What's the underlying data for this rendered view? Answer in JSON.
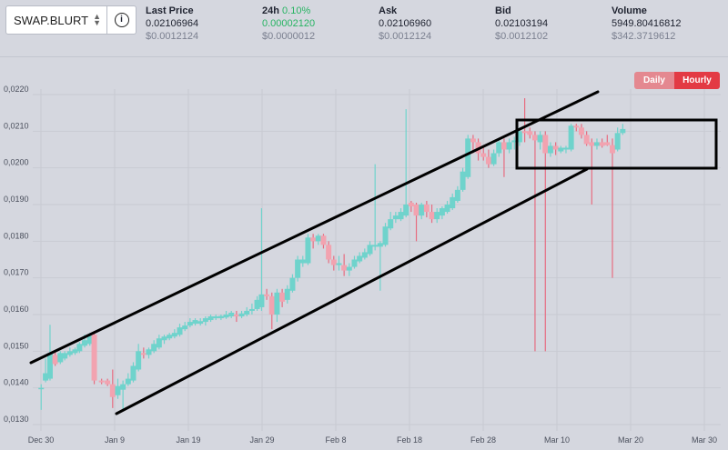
{
  "selector": {
    "pair": "SWAP.BLURT",
    "info_icon": "info-icon"
  },
  "stats": {
    "last_price": {
      "label": "Last Price",
      "value": "0.02106964",
      "usd": "$0.0012124"
    },
    "change_24h": {
      "label": "24h",
      "pct": "0.10%",
      "value": "0.00002120",
      "usd": "$0.0000012"
    },
    "ask": {
      "label": "Ask",
      "value": "0.02106960",
      "usd": "$0.0012124"
    },
    "bid": {
      "label": "Bid",
      "value": "0.02103194",
      "usd": "$0.0012102"
    },
    "volume": {
      "label": "Volume",
      "value": "5949.80416812",
      "usd": "$342.3719612"
    }
  },
  "toggle": {
    "daily": "Daily",
    "hourly": "Hourly",
    "active": "Hourly"
  },
  "colors": {
    "up": "#6fd3cc",
    "down": "#f2a3b0",
    "up_wick": "#6fd3cc",
    "down_wick": "#e76c80",
    "accent": "#e33a44"
  },
  "chart_data": {
    "type": "candlestick",
    "y_ticks": [
      "0,0130",
      "0,0140",
      "0,0150",
      "0,0160",
      "0,0170",
      "0,0180",
      "0,0190",
      "0,0200",
      "0,0210",
      "0,0220"
    ],
    "ylim": [
      0.013,
      0.0222
    ],
    "x_ticks": [
      {
        "label": "Dec 30",
        "day": 0
      },
      {
        "label": "Jan 9",
        "day": 10
      },
      {
        "label": "Jan 19",
        "day": 20
      },
      {
        "label": "Jan 29",
        "day": 30
      },
      {
        "label": "Feb 8",
        "day": 40
      },
      {
        "label": "Feb 18",
        "day": 50
      },
      {
        "label": "Feb 28",
        "day": 60
      },
      {
        "label": "Mar 10",
        "day": 70
      },
      {
        "label": "Mar 20",
        "day": 80
      },
      {
        "label": "Mar 30",
        "day": 90
      }
    ],
    "candles": [
      {
        "day": 0.4,
        "o": 0.014,
        "h": 0.0141,
        "l": 0.0134,
        "c": 0.014
      },
      {
        "day": 1.0,
        "o": 0.0142,
        "h": 0.0148,
        "l": 0.01415,
        "c": 0.0144
      },
      {
        "day": 1.6,
        "o": 0.01425,
        "h": 0.01572,
        "l": 0.0142,
        "c": 0.01495
      },
      {
        "day": 2.3,
        "o": 0.0149,
        "h": 0.015,
        "l": 0.0146,
        "c": 0.01465
      },
      {
        "day": 3.0,
        "o": 0.0147,
        "h": 0.015,
        "l": 0.01465,
        "c": 0.01495
      },
      {
        "day": 3.6,
        "o": 0.0148,
        "h": 0.015,
        "l": 0.01475,
        "c": 0.01495
      },
      {
        "day": 4.3,
        "o": 0.0149,
        "h": 0.0151,
        "l": 0.01485,
        "c": 0.015
      },
      {
        "day": 5.0,
        "o": 0.01495,
        "h": 0.0151,
        "l": 0.0149,
        "c": 0.01505
      },
      {
        "day": 5.6,
        "o": 0.015,
        "h": 0.01525,
        "l": 0.01495,
        "c": 0.0152
      },
      {
        "day": 6.3,
        "o": 0.01515,
        "h": 0.01545,
        "l": 0.0151,
        "c": 0.0153
      },
      {
        "day": 7.0,
        "o": 0.0152,
        "h": 0.0155,
        "l": 0.01515,
        "c": 0.01545
      },
      {
        "day": 7.6,
        "o": 0.01545,
        "h": 0.01555,
        "l": 0.0141,
        "c": 0.0142
      },
      {
        "day": 8.6,
        "o": 0.0142,
        "h": 0.01425,
        "l": 0.0141,
        "c": 0.01415
      },
      {
        "day": 9.4,
        "o": 0.0142,
        "h": 0.01425,
        "l": 0.01405,
        "c": 0.0141
      },
      {
        "day": 10.1,
        "o": 0.0141,
        "h": 0.0145,
        "l": 0.01345,
        "c": 0.01375
      },
      {
        "day": 10.8,
        "o": 0.0138,
        "h": 0.01425,
        "l": 0.0137,
        "c": 0.01405
      },
      {
        "day": 11.5,
        "o": 0.01395,
        "h": 0.0142,
        "l": 0.0134,
        "c": 0.0141
      },
      {
        "day": 12.2,
        "o": 0.0141,
        "h": 0.0144,
        "l": 0.01405,
        "c": 0.01425
      },
      {
        "day": 12.9,
        "o": 0.0142,
        "h": 0.0147,
        "l": 0.01415,
        "c": 0.0146
      },
      {
        "day": 13.6,
        "o": 0.0145,
        "h": 0.0152,
        "l": 0.01445,
        "c": 0.015
      },
      {
        "day": 14.3,
        "o": 0.01495,
        "h": 0.0151,
        "l": 0.0148,
        "c": 0.0149
      },
      {
        "day": 15.0,
        "o": 0.0149,
        "h": 0.0151,
        "l": 0.0148,
        "c": 0.01505
      },
      {
        "day": 15.7,
        "o": 0.015,
        "h": 0.0153,
        "l": 0.01495,
        "c": 0.0152
      },
      {
        "day": 16.4,
        "o": 0.0151,
        "h": 0.01545,
        "l": 0.01505,
        "c": 0.01535
      },
      {
        "day": 17.1,
        "o": 0.0153,
        "h": 0.01545,
        "l": 0.0152,
        "c": 0.0154
      },
      {
        "day": 17.8,
        "o": 0.01535,
        "h": 0.0155,
        "l": 0.0153,
        "c": 0.01545
      },
      {
        "day": 18.5,
        "o": 0.0154,
        "h": 0.0156,
        "l": 0.01535,
        "c": 0.0155
      },
      {
        "day": 19.2,
        "o": 0.01545,
        "h": 0.01575,
        "l": 0.0154,
        "c": 0.01565
      },
      {
        "day": 19.9,
        "o": 0.0156,
        "h": 0.0158,
        "l": 0.01555,
        "c": 0.0157
      },
      {
        "day": 20.6,
        "o": 0.0157,
        "h": 0.0159,
        "l": 0.01565,
        "c": 0.0158
      },
      {
        "day": 21.3,
        "o": 0.01575,
        "h": 0.0159,
        "l": 0.0157,
        "c": 0.01585
      },
      {
        "day": 22.0,
        "o": 0.01575,
        "h": 0.0159,
        "l": 0.0157,
        "c": 0.01582
      },
      {
        "day": 22.7,
        "o": 0.0158,
        "h": 0.01595,
        "l": 0.0157,
        "c": 0.0159
      },
      {
        "day": 23.4,
        "o": 0.01585,
        "h": 0.016,
        "l": 0.0158,
        "c": 0.01595
      },
      {
        "day": 24.1,
        "o": 0.0159,
        "h": 0.016,
        "l": 0.01585,
        "c": 0.01595
      },
      {
        "day": 24.8,
        "o": 0.0159,
        "h": 0.016,
        "l": 0.01585,
        "c": 0.01596
      },
      {
        "day": 25.5,
        "o": 0.01592,
        "h": 0.0161,
        "l": 0.01588,
        "c": 0.016
      },
      {
        "day": 26.2,
        "o": 0.01595,
        "h": 0.0161,
        "l": 0.0159,
        "c": 0.01605
      },
      {
        "day": 26.9,
        "o": 0.016,
        "h": 0.0161,
        "l": 0.0158,
        "c": 0.01595
      },
      {
        "day": 27.6,
        "o": 0.01595,
        "h": 0.0161,
        "l": 0.0159,
        "c": 0.01603
      },
      {
        "day": 28.3,
        "o": 0.016,
        "h": 0.0162,
        "l": 0.01595,
        "c": 0.0161
      },
      {
        "day": 29.0,
        "o": 0.0161,
        "h": 0.0163,
        "l": 0.016,
        "c": 0.01615
      },
      {
        "day": 29.7,
        "o": 0.01615,
        "h": 0.0165,
        "l": 0.0161,
        "c": 0.0164
      },
      {
        "day": 30.3,
        "o": 0.0162,
        "h": 0.0189,
        "l": 0.0161,
        "c": 0.01655
      },
      {
        "day": 31.0,
        "o": 0.01655,
        "h": 0.0167,
        "l": 0.0164,
        "c": 0.0165
      },
      {
        "day": 31.7,
        "o": 0.0165,
        "h": 0.0166,
        "l": 0.0156,
        "c": 0.016
      },
      {
        "day": 32.4,
        "o": 0.016,
        "h": 0.0167,
        "l": 0.0158,
        "c": 0.0166
      },
      {
        "day": 33.1,
        "o": 0.0166,
        "h": 0.0167,
        "l": 0.0162,
        "c": 0.01635
      },
      {
        "day": 33.8,
        "o": 0.0164,
        "h": 0.0168,
        "l": 0.0163,
        "c": 0.0167
      },
      {
        "day": 34.5,
        "o": 0.01665,
        "h": 0.0171,
        "l": 0.0166,
        "c": 0.017
      },
      {
        "day": 35.2,
        "o": 0.017,
        "h": 0.0176,
        "l": 0.0169,
        "c": 0.0175
      },
      {
        "day": 35.9,
        "o": 0.0174,
        "h": 0.0176,
        "l": 0.0173,
        "c": 0.0175
      },
      {
        "day": 36.6,
        "o": 0.0174,
        "h": 0.0182,
        "l": 0.01735,
        "c": 0.0181
      },
      {
        "day": 37.3,
        "o": 0.0181,
        "h": 0.0182,
        "l": 0.0178,
        "c": 0.018
      },
      {
        "day": 38.0,
        "o": 0.018,
        "h": 0.0182,
        "l": 0.0179,
        "c": 0.01815
      },
      {
        "day": 38.7,
        "o": 0.01815,
        "h": 0.0182,
        "l": 0.0178,
        "c": 0.0179
      },
      {
        "day": 39.4,
        "o": 0.0179,
        "h": 0.018,
        "l": 0.0174,
        "c": 0.0175
      },
      {
        "day": 40.1,
        "o": 0.0175,
        "h": 0.0176,
        "l": 0.0172,
        "c": 0.01735
      },
      {
        "day": 40.8,
        "o": 0.01735,
        "h": 0.0176,
        "l": 0.0172,
        "c": 0.0174
      },
      {
        "day": 41.5,
        "o": 0.01735,
        "h": 0.01765,
        "l": 0.01705,
        "c": 0.0172
      },
      {
        "day": 42.2,
        "o": 0.0172,
        "h": 0.0174,
        "l": 0.01705,
        "c": 0.0173
      },
      {
        "day": 42.9,
        "o": 0.0173,
        "h": 0.0176,
        "l": 0.01725,
        "c": 0.0175
      },
      {
        "day": 43.6,
        "o": 0.01745,
        "h": 0.0177,
        "l": 0.0174,
        "c": 0.0176
      },
      {
        "day": 44.3,
        "o": 0.01755,
        "h": 0.0178,
        "l": 0.0175,
        "c": 0.0177
      },
      {
        "day": 45.0,
        "o": 0.01765,
        "h": 0.018,
        "l": 0.0176,
        "c": 0.0179
      },
      {
        "day": 45.7,
        "o": 0.01785,
        "h": 0.0201,
        "l": 0.01775,
        "c": 0.0179
      },
      {
        "day": 46.4,
        "o": 0.01785,
        "h": 0.018,
        "l": 0.01665,
        "c": 0.01795
      },
      {
        "day": 47.1,
        "o": 0.0179,
        "h": 0.0185,
        "l": 0.01785,
        "c": 0.0184
      },
      {
        "day": 47.8,
        "o": 0.01835,
        "h": 0.0188,
        "l": 0.0183,
        "c": 0.0186
      },
      {
        "day": 48.5,
        "o": 0.0186,
        "h": 0.0188,
        "l": 0.0185,
        "c": 0.0187
      },
      {
        "day": 49.2,
        "o": 0.0186,
        "h": 0.0189,
        "l": 0.01855,
        "c": 0.0188
      },
      {
        "day": 49.9,
        "o": 0.0187,
        "h": 0.0216,
        "l": 0.01865,
        "c": 0.019
      },
      {
        "day": 50.6,
        "o": 0.01905,
        "h": 0.0191,
        "l": 0.0188,
        "c": 0.01895
      },
      {
        "day": 51.3,
        "o": 0.019,
        "h": 0.01905,
        "l": 0.018,
        "c": 0.0187
      },
      {
        "day": 52.0,
        "o": 0.0187,
        "h": 0.01905,
        "l": 0.0186,
        "c": 0.019
      },
      {
        "day": 52.7,
        "o": 0.019,
        "h": 0.0191,
        "l": 0.01865,
        "c": 0.0188
      },
      {
        "day": 53.4,
        "o": 0.0188,
        "h": 0.019,
        "l": 0.0185,
        "c": 0.0186
      },
      {
        "day": 54.1,
        "o": 0.0186,
        "h": 0.0189,
        "l": 0.0185,
        "c": 0.0188
      },
      {
        "day": 54.8,
        "o": 0.0187,
        "h": 0.01895,
        "l": 0.0186,
        "c": 0.0189
      },
      {
        "day": 55.5,
        "o": 0.0188,
        "h": 0.0191,
        "l": 0.01875,
        "c": 0.019
      },
      {
        "day": 56.2,
        "o": 0.0189,
        "h": 0.0193,
        "l": 0.01885,
        "c": 0.0192
      },
      {
        "day": 56.9,
        "o": 0.0191,
        "h": 0.0195,
        "l": 0.01905,
        "c": 0.0194
      },
      {
        "day": 57.6,
        "o": 0.0194,
        "h": 0.02,
        "l": 0.01935,
        "c": 0.0199
      },
      {
        "day": 58.3,
        "o": 0.01975,
        "h": 0.0209,
        "l": 0.0197,
        "c": 0.0208
      },
      {
        "day": 59.0,
        "o": 0.0208,
        "h": 0.0209,
        "l": 0.0204,
        "c": 0.0207
      },
      {
        "day": 59.7,
        "o": 0.0207,
        "h": 0.0208,
        "l": 0.0202,
        "c": 0.0204
      },
      {
        "day": 60.4,
        "o": 0.0204,
        "h": 0.0206,
        "l": 0.0202,
        "c": 0.0203
      },
      {
        "day": 61.1,
        "o": 0.0203,
        "h": 0.0205,
        "l": 0.02,
        "c": 0.0201
      },
      {
        "day": 61.8,
        "o": 0.0201,
        "h": 0.0205,
        "l": 0.02005,
        "c": 0.0204
      },
      {
        "day": 62.5,
        "o": 0.0204,
        "h": 0.02075,
        "l": 0.0203,
        "c": 0.0207
      },
      {
        "day": 63.2,
        "o": 0.0207,
        "h": 0.0208,
        "l": 0.01975,
        "c": 0.0205
      },
      {
        "day": 63.9,
        "o": 0.0205,
        "h": 0.0208,
        "l": 0.0204,
        "c": 0.0207
      },
      {
        "day": 64.6,
        "o": 0.0207,
        "h": 0.02085,
        "l": 0.0205,
        "c": 0.02075
      },
      {
        "day": 65.3,
        "o": 0.0207,
        "h": 0.0211,
        "l": 0.0206,
        "c": 0.021
      },
      {
        "day": 66.0,
        "o": 0.021,
        "h": 0.0219,
        "l": 0.0207,
        "c": 0.02095
      },
      {
        "day": 66.7,
        "o": 0.021,
        "h": 0.0211,
        "l": 0.0208,
        "c": 0.0209
      },
      {
        "day": 67.4,
        "o": 0.0209,
        "h": 0.021,
        "l": 0.015,
        "c": 0.02075
      },
      {
        "day": 68.1,
        "o": 0.0207,
        "h": 0.021,
        "l": 0.0205,
        "c": 0.0209
      },
      {
        "day": 68.8,
        "o": 0.0209,
        "h": 0.021,
        "l": 0.015,
        "c": 0.0204
      },
      {
        "day": 69.5,
        "o": 0.0204,
        "h": 0.0207,
        "l": 0.0203,
        "c": 0.0206
      },
      {
        "day": 70.2,
        "o": 0.0206,
        "h": 0.0207,
        "l": 0.02035,
        "c": 0.0205
      },
      {
        "day": 70.9,
        "o": 0.02045,
        "h": 0.0206,
        "l": 0.0204,
        "c": 0.02055
      },
      {
        "day": 71.6,
        "o": 0.0205,
        "h": 0.0206,
        "l": 0.0204,
        "c": 0.02055
      },
      {
        "day": 72.3,
        "o": 0.0205,
        "h": 0.0212,
        "l": 0.02045,
        "c": 0.02115
      },
      {
        "day": 73.0,
        "o": 0.02115,
        "h": 0.0212,
        "l": 0.021,
        "c": 0.0211
      },
      {
        "day": 73.7,
        "o": 0.0211,
        "h": 0.0212,
        "l": 0.0208,
        "c": 0.0209
      },
      {
        "day": 74.4,
        "o": 0.0209,
        "h": 0.021,
        "l": 0.0206,
        "c": 0.02065
      },
      {
        "day": 75.1,
        "o": 0.0207,
        "h": 0.0208,
        "l": 0.019,
        "c": 0.0206
      },
      {
        "day": 75.8,
        "o": 0.0206,
        "h": 0.0208,
        "l": 0.0205,
        "c": 0.0207
      },
      {
        "day": 76.5,
        "o": 0.0207,
        "h": 0.0208,
        "l": 0.02055,
        "c": 0.0206
      },
      {
        "day": 77.2,
        "o": 0.0207,
        "h": 0.0209,
        "l": 0.0206,
        "c": 0.02062
      },
      {
        "day": 77.9,
        "o": 0.02062,
        "h": 0.0208,
        "l": 0.017,
        "c": 0.0204
      },
      {
        "day": 78.6,
        "o": 0.0205,
        "h": 0.0211,
        "l": 0.02045,
        "c": 0.02095
      },
      {
        "day": 79.3,
        "o": 0.02095,
        "h": 0.0212,
        "l": 0.0209,
        "c": 0.02106
      }
    ]
  }
}
